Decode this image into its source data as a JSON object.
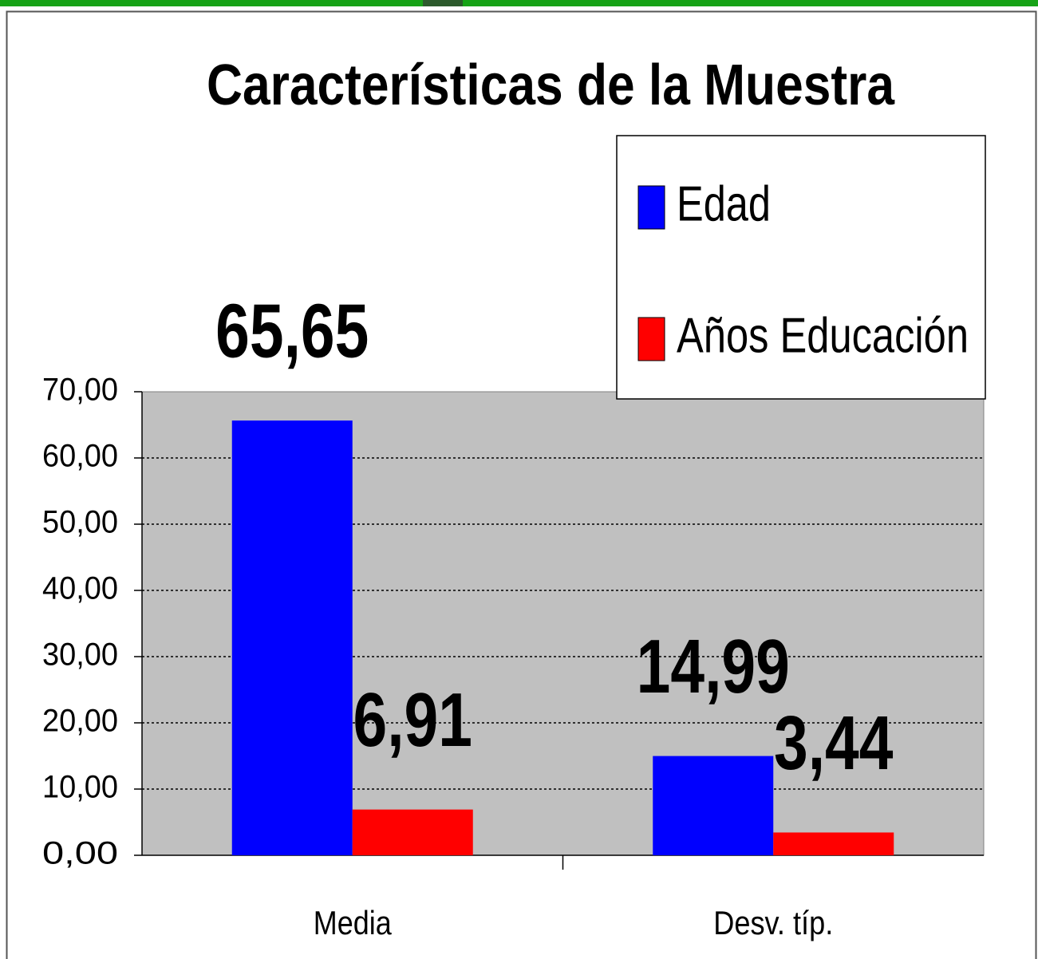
{
  "chart_data": {
    "type": "bar",
    "title": "Características de la Muestra",
    "categories": [
      "Media",
      "Desv. típ."
    ],
    "series": [
      {
        "name": "Edad",
        "color": "#0000ff",
        "values": [
          65.65,
          14.99
        ],
        "value_labels": [
          "65,65",
          "14,99"
        ]
      },
      {
        "name": "Años Educación",
        "color": "#ff0000",
        "values": [
          6.91,
          3.44
        ],
        "value_labels": [
          "6,91",
          "3,44"
        ]
      }
    ],
    "ylim": [
      0,
      70
    ],
    "yticks": [
      {
        "value": 0,
        "label": "0,00"
      },
      {
        "value": 10,
        "label": "10,00"
      },
      {
        "value": 20,
        "label": "20,00"
      },
      {
        "value": 30,
        "label": "30,00"
      },
      {
        "value": 40,
        "label": "40,00"
      },
      {
        "value": 50,
        "label": "50,00"
      },
      {
        "value": 60,
        "label": "60,00"
      },
      {
        "value": 70,
        "label": "70,00"
      }
    ],
    "grid": true,
    "plot_background": "#c0c0c0",
    "legend_position": "upper right"
  }
}
